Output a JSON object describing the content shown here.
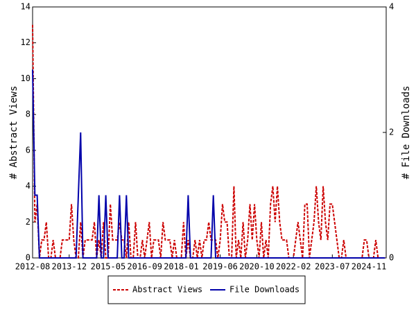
{
  "chart_data": {
    "type": "line",
    "y_label": "# Abstract Views",
    "y2_label": "# File Downloads",
    "x": [
      "2012-08",
      "2012-09",
      "2012-10",
      "2012-11",
      "2012-12",
      "2013-01",
      "2013-02",
      "2013-03",
      "2013-04",
      "2013-05",
      "2013-06",
      "2013-07",
      "2013-08",
      "2013-09",
      "2013-10",
      "2013-11",
      "2013-12",
      "2014-01",
      "2014-02",
      "2014-03",
      "2014-04",
      "2014-05",
      "2014-06",
      "2014-07",
      "2014-08",
      "2014-09",
      "2014-10",
      "2014-11",
      "2014-12",
      "2015-01",
      "2015-02",
      "2015-03",
      "2015-04",
      "2015-05",
      "2015-06",
      "2015-07",
      "2015-08",
      "2015-09",
      "2015-10",
      "2015-11",
      "2015-12",
      "2016-01",
      "2016-02",
      "2016-03",
      "2016-04",
      "2016-05",
      "2016-06",
      "2016-07",
      "2016-08",
      "2016-09",
      "2016-10",
      "2016-11",
      "2016-12",
      "2017-01",
      "2017-02",
      "2017-03",
      "2017-04",
      "2017-05",
      "2017-06",
      "2017-07",
      "2017-08",
      "2017-09",
      "2017-10",
      "2017-11",
      "2017-12",
      "2018-01",
      "2018-02",
      "2018-03",
      "2018-04",
      "2018-05",
      "2018-06",
      "2018-07",
      "2018-08",
      "2018-09",
      "2018-10",
      "2018-11",
      "2018-12",
      "2019-01",
      "2019-02",
      "2019-03",
      "2019-04",
      "2019-05",
      "2019-06",
      "2019-07",
      "2019-08",
      "2019-09",
      "2019-10",
      "2019-11",
      "2019-12",
      "2020-01",
      "2020-02",
      "2020-03",
      "2020-04",
      "2020-05",
      "2020-06",
      "2020-07",
      "2020-08",
      "2020-09",
      "2020-10",
      "2020-11",
      "2020-12",
      "2021-01",
      "2021-02",
      "2021-03",
      "2021-04",
      "2021-05",
      "2021-06",
      "2021-07",
      "2021-08",
      "2021-09",
      "2021-10",
      "2021-11",
      "2021-12",
      "2022-01",
      "2022-02",
      "2022-03",
      "2022-04",
      "2022-05",
      "2022-06",
      "2022-07",
      "2022-08",
      "2022-09",
      "2022-10",
      "2022-11",
      "2022-12",
      "2023-01",
      "2023-02",
      "2023-03",
      "2023-04",
      "2023-05",
      "2023-06",
      "2023-07",
      "2023-08",
      "2023-09",
      "2023-10",
      "2023-11",
      "2023-12",
      "2024-01",
      "2024-02",
      "2024-03",
      "2024-04",
      "2024-05",
      "2024-06",
      "2024-07",
      "2024-08",
      "2024-09",
      "2024-10",
      "2024-11",
      "2024-12",
      "2025-01",
      "2025-02",
      "2025-03",
      "2025-04",
      "2025-05",
      "2025-06"
    ],
    "xticks": [
      "2012-08",
      "2013-12",
      "2015-05",
      "2016-09",
      "2018-01",
      "2019-06",
      "2020-10",
      "2022-02",
      "2023-07",
      "2024-11"
    ],
    "ylim": [
      0,
      14
    ],
    "yticks": [
      0,
      2,
      4,
      6,
      8,
      10,
      12,
      14
    ],
    "y2lim": [
      0,
      4
    ],
    "y2ticks": [
      0,
      2,
      4
    ],
    "legend": "bottom",
    "series": [
      {
        "name": "Abstract Views",
        "color": "#cc0000",
        "dashed": true,
        "values": [
          13,
          2,
          3,
          0,
          1,
          1,
          2,
          0,
          0,
          1,
          0,
          0,
          0,
          1,
          1,
          1,
          1,
          3,
          1,
          0,
          0,
          2,
          0,
          1,
          1,
          1,
          1,
          2,
          0,
          1,
          0,
          2,
          0,
          0,
          3,
          1,
          1,
          1,
          2,
          1,
          1,
          0,
          2,
          0,
          0,
          2,
          0,
          0,
          1,
          0,
          1,
          2,
          0,
          1,
          1,
          1,
          0,
          2,
          1,
          1,
          1,
          0,
          1,
          0,
          0,
          0,
          2,
          0,
          1,
          0,
          0,
          1,
          0,
          1,
          0,
          1,
          1,
          2,
          1,
          1,
          1,
          0,
          1,
          3,
          2,
          2,
          0,
          0,
          4,
          0,
          1,
          0,
          2,
          0,
          1,
          3,
          1,
          3,
          1,
          0,
          2,
          0,
          1,
          0,
          3,
          4,
          2,
          4,
          2,
          1,
          1,
          1,
          0,
          0,
          0,
          1,
          2,
          1,
          0,
          3,
          3,
          0,
          1,
          2,
          4,
          2,
          1,
          4,
          2,
          1,
          3,
          3,
          2,
          1,
          0,
          0,
          1,
          0,
          0,
          0,
          0,
          0,
          0,
          0,
          0,
          1,
          1,
          0,
          0,
          0,
          1,
          0,
          0,
          0,
          0
        ]
      },
      {
        "name": "File Downloads",
        "color": "#0000aa",
        "axis": "y2",
        "values": [
          3,
          1,
          1,
          0,
          0,
          0,
          0,
          0,
          0,
          0,
          0,
          0,
          0,
          0,
          0,
          0,
          0,
          0,
          0,
          0,
          1,
          2,
          0,
          0,
          0,
          0,
          0,
          0,
          0,
          1,
          0,
          0,
          1,
          0,
          0,
          0,
          0,
          0,
          1,
          0,
          0,
          1,
          0,
          0,
          0,
          0,
          0,
          0,
          0,
          0,
          0,
          0,
          0,
          0,
          0,
          0,
          0,
          0,
          0,
          0,
          0,
          0,
          0,
          0,
          0,
          0,
          0,
          0,
          1,
          0,
          0,
          0,
          0,
          0,
          0,
          0,
          0,
          0,
          0,
          1,
          0,
          0,
          0,
          0,
          0,
          0,
          0,
          0,
          0,
          0,
          0,
          0,
          0,
          0,
          0,
          0,
          0,
          0,
          0,
          0,
          0,
          0,
          0,
          0,
          0,
          0,
          0,
          0,
          0,
          0,
          0,
          0,
          0,
          0,
          0,
          0,
          0,
          0,
          0,
          0,
          0,
          0,
          0,
          0,
          0,
          0,
          0,
          0,
          0,
          0,
          0,
          0,
          0,
          0,
          0,
          0,
          0,
          0,
          0,
          0,
          0,
          0,
          0,
          0,
          0,
          0,
          0,
          0,
          0,
          0,
          0,
          0,
          0,
          0,
          0
        ]
      }
    ]
  }
}
